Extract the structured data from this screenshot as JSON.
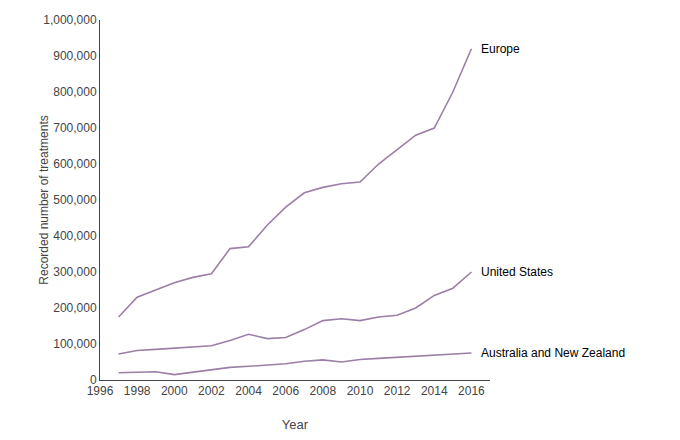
{
  "chart_data": {
    "type": "line",
    "xlabel": "Year",
    "ylabel": "Recorded number of treatments",
    "series": [
      {
        "name": "Europe",
        "color": "#9b7fa6",
        "x": [
          1997,
          1998,
          1999,
          2000,
          2001,
          2002,
          2003,
          2004,
          2005,
          2006,
          2007,
          2008,
          2009,
          2010,
          2011,
          2012,
          2013,
          2014,
          2015,
          2016
        ],
        "values": [
          175000,
          230000,
          250000,
          270000,
          285000,
          295000,
          365000,
          370000,
          430000,
          480000,
          520000,
          535000,
          545000,
          550000,
          600000,
          640000,
          680000,
          700000,
          800000,
          920000
        ]
      },
      {
        "name": "United States",
        "color": "#9b7fa6",
        "x": [
          1997,
          1998,
          1999,
          2000,
          2001,
          2002,
          2003,
          2004,
          2005,
          2006,
          2007,
          2008,
          2009,
          2010,
          2011,
          2012,
          2013,
          2014,
          2015,
          2016
        ],
        "values": [
          72000,
          82000,
          85000,
          88000,
          90000,
          95000,
          110000,
          127000,
          115000,
          118000,
          140000,
          165000,
          170000,
          165000,
          175000,
          180000,
          200000,
          235000,
          255000,
          300000
        ]
      },
      {
        "name": "Australia and New Zealand",
        "color": "#9b7fa6",
        "x": [
          1997,
          1998,
          1999,
          2000,
          2001,
          2002,
          2003,
          2004,
          2005,
          2006,
          2007,
          2008,
          2009,
          2010,
          2011,
          2012,
          2013,
          2014,
          2015,
          2016
        ],
        "values": [
          20000,
          22000,
          23000,
          15000,
          22000,
          28000,
          35000,
          38000,
          42000,
          45000,
          52000,
          56000,
          50000,
          57000,
          60000,
          63000,
          67000,
          70000,
          72000,
          75000
        ]
      }
    ],
    "xlim": [
      1996,
      2017
    ],
    "ylim": [
      0,
      1000000
    ],
    "xticks": [
      1996,
      1998,
      2000,
      2002,
      2004,
      2006,
      2008,
      2010,
      2012,
      2014,
      2016
    ],
    "yticks": [
      0,
      {
        "value": 100000,
        "label": "100,000"
      },
      {
        "value": 200000,
        "label": "200,000"
      },
      {
        "value": 300000,
        "label": "300,000"
      },
      {
        "value": 400000,
        "label": "400,000"
      },
      {
        "value": 500000,
        "label": "500,000"
      },
      {
        "value": 600000,
        "label": "600,000"
      },
      {
        "value": 700000,
        "label": "700,000"
      },
      {
        "value": 800000,
        "label": "800,000"
      },
      {
        "value": 900000,
        "label": "900,000"
      },
      {
        "value": 1000000,
        "label": "1,000,000"
      }
    ],
    "grid": false
  }
}
